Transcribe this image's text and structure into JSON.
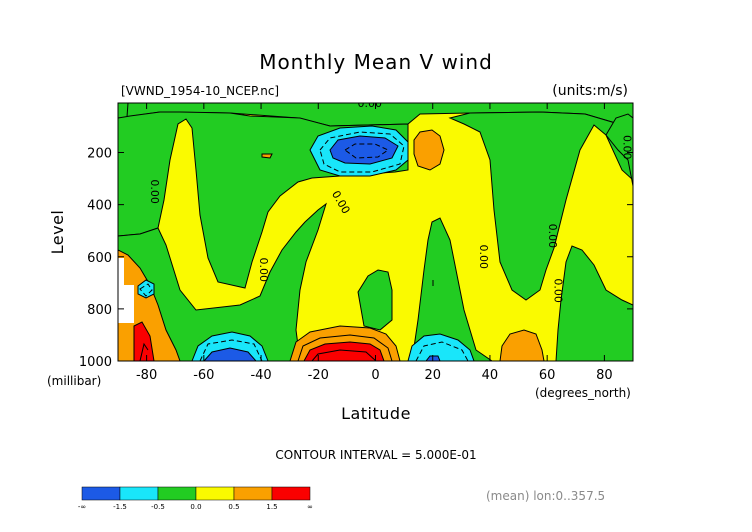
{
  "chart_data": {
    "type": "heatmap",
    "title": "Monthly Mean V wind",
    "subtitle_left": "[VWND_1954-10_NCEP.nc]",
    "subtitle_right": "(units:m/s)",
    "xlabel": "Latitude",
    "xunit": "(degrees_north)",
    "ylabel": "Level",
    "yunit": "(millibar)",
    "xlim": [
      -90,
      90
    ],
    "ylim": [
      1000,
      10
    ],
    "x_ticks": [
      -80,
      -60,
      -40,
      -20,
      0,
      20,
      40,
      60,
      80
    ],
    "y_ticks": [
      200,
      400,
      600,
      800,
      1000
    ],
    "contour_interval_text": "CONTOUR INTERVAL = 5.000E-01",
    "contour_labels": [
      {
        "text": "0.00",
        "x": -2,
        "y": 10,
        "angle": 0
      },
      {
        "text": "0.00",
        "x": -77,
        "y": 350,
        "angle": 90
      },
      {
        "text": "0.00",
        "x": -39,
        "y": 650,
        "angle": 90
      },
      {
        "text": "0.00",
        "x": -12,
        "y": 390,
        "angle": 60
      },
      {
        "text": "0.00",
        "x": 38,
        "y": 600,
        "angle": 90
      },
      {
        "text": "0.00",
        "x": 62,
        "y": 520,
        "angle": 90
      },
      {
        "text": "0.00",
        "x": 64,
        "y": 730,
        "angle": 90
      },
      {
        "text": "0.00",
        "x": 88,
        "y": 180,
        "angle": 90
      }
    ],
    "colorbar": {
      "colors": [
        "#1c5ae6",
        "#19e6fa",
        "#22cc22",
        "#fafa00",
        "#faa000",
        "#fa0000"
      ],
      "labels": [
        "-∞",
        "-1.5",
        "-0.5",
        "0.0",
        "0.5",
        "1.5",
        "∞"
      ]
    },
    "footer_note": "(mean) lon:0..357.5"
  }
}
